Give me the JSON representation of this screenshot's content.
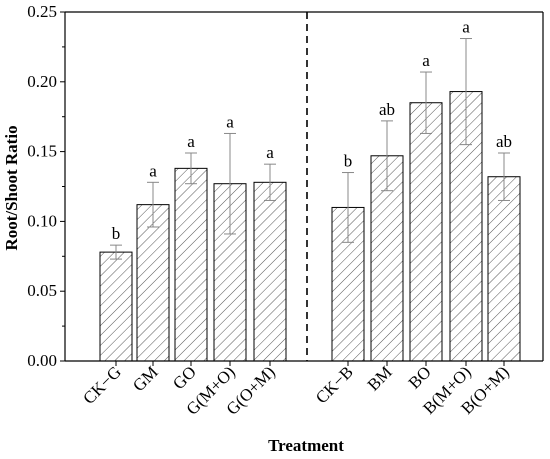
{
  "chart_data": {
    "type": "bar",
    "categories": [
      "CK−G",
      "GM",
      "GO",
      "G(M+O)",
      "G(O+M)",
      "CK−B",
      "BM",
      "BO",
      "B(M+O)",
      "B(O+M)"
    ],
    "values": [
      0.078,
      0.112,
      0.138,
      0.127,
      0.128,
      0.11,
      0.147,
      0.185,
      0.193,
      0.132
    ],
    "errors": [
      0.005,
      0.016,
      0.011,
      0.036,
      0.013,
      0.025,
      0.025,
      0.022,
      0.038,
      0.017
    ],
    "significance": [
      "b",
      "a",
      "a",
      "a",
      "a",
      "b",
      "ab",
      "a",
      "a",
      "ab"
    ],
    "xlabel": "Treatment",
    "ylabel": "Root/Shoot Ratio",
    "ylim": [
      0,
      0.25
    ],
    "yticks": [
      "0.00",
      "0.05",
      "0.10",
      "0.15",
      "0.20",
      "0.25"
    ],
    "group_divider_after": 4,
    "bar_fill": "#ffffff",
    "hatch_color": "#555555",
    "error_color": "#888888",
    "grid": false
  }
}
